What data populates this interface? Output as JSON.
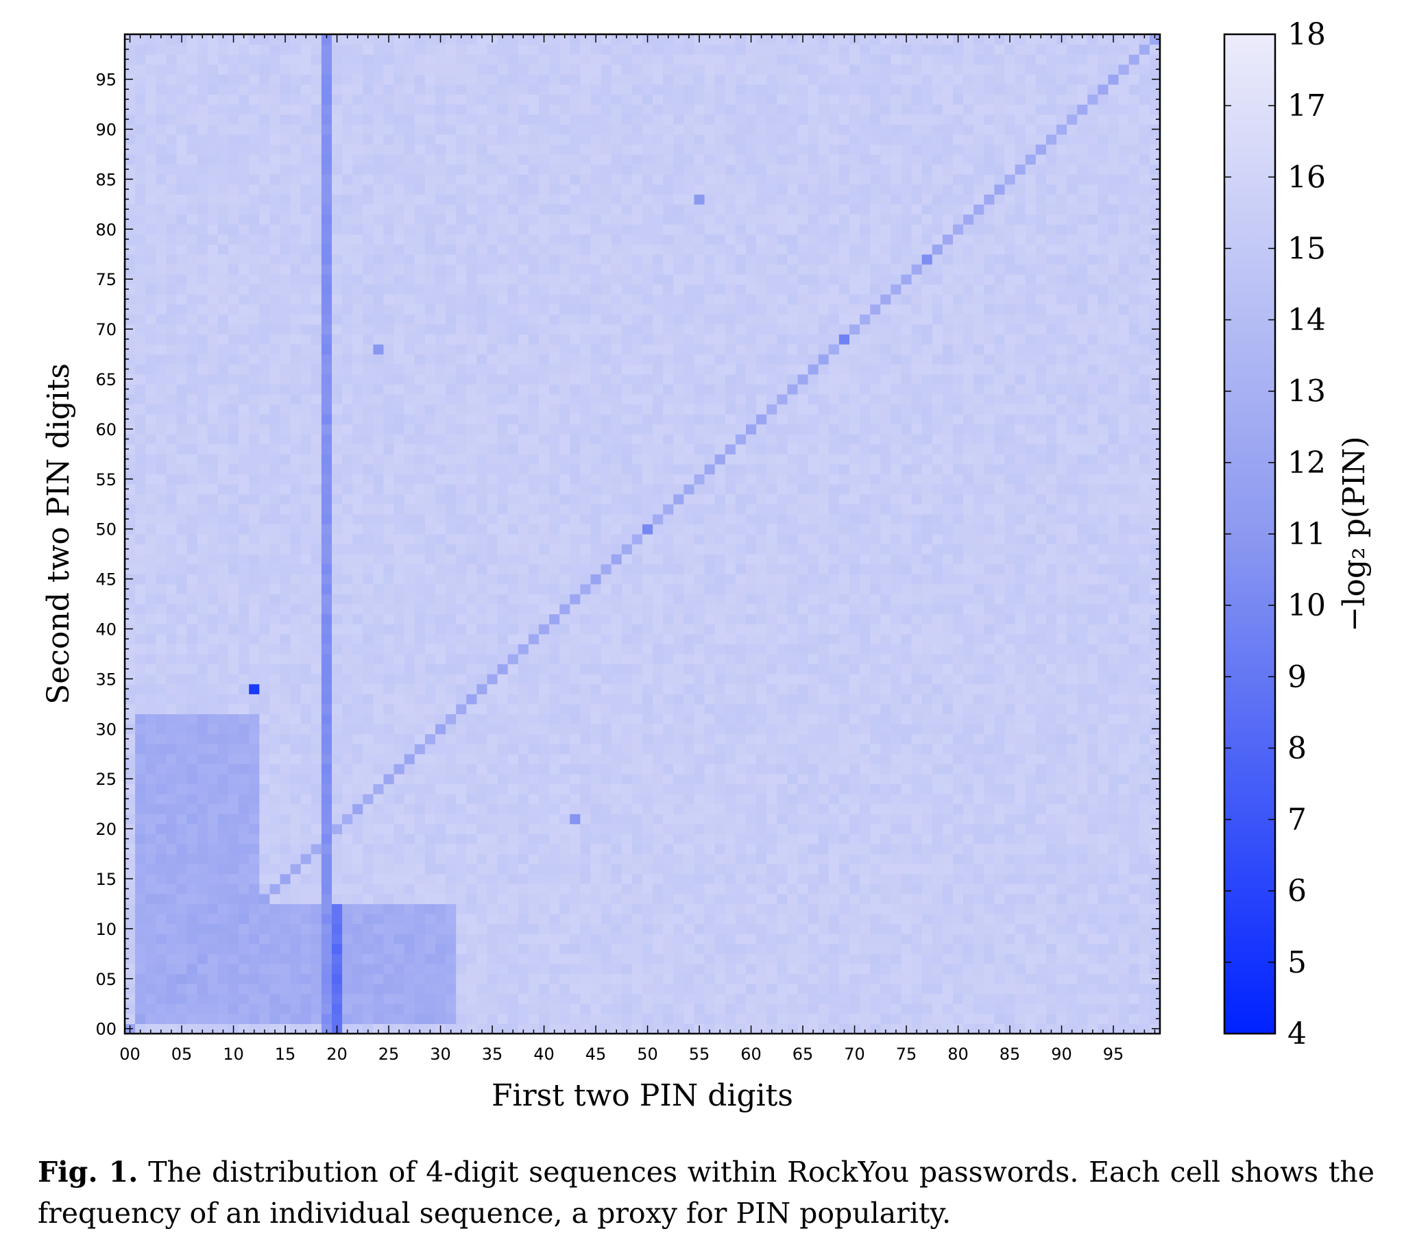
{
  "chart_data": {
    "type": "heatmap",
    "xlabel": "First two PIN digits",
    "ylabel": "Second two PIN digits",
    "x_ticks": [
      "00",
      "05",
      "10",
      "15",
      "20",
      "25",
      "30",
      "35",
      "40",
      "45",
      "50",
      "55",
      "60",
      "65",
      "70",
      "75",
      "80",
      "85",
      "90",
      "95"
    ],
    "y_ticks": [
      "00",
      "05",
      "10",
      "15",
      "20",
      "25",
      "30",
      "35",
      "40",
      "45",
      "50",
      "55",
      "60",
      "65",
      "70",
      "75",
      "80",
      "85",
      "90",
      "95"
    ],
    "x_range": [
      0,
      99
    ],
    "y_range": [
      0,
      99
    ],
    "colorbar": {
      "label": "−log₂ p(PIN)",
      "range": [
        4,
        18
      ],
      "ticks": [
        "4",
        "5",
        "6",
        "7",
        "8",
        "9",
        "10",
        "11",
        "12",
        "13",
        "14",
        "15",
        "16",
        "17",
        "18"
      ],
      "color_low": "#0022ff",
      "color_high": "#ececfb"
    },
    "value_model": {
      "baseline": 15.4,
      "years_1900s": {
        "first_digits": 19,
        "value": 10.5
      },
      "years_2000s": {
        "first_digits": 20,
        "second_range": [
          0,
          12
        ],
        "value": 8.5
      },
      "repeated_pairs_diagonal": 12.3,
      "dates_mmdd_region": {
        "first_range": [
          1,
          12
        ],
        "second_range": [
          1,
          31
        ],
        "value": 12.6
      },
      "dates_ddmm_region": {
        "first_range": [
          1,
          31
        ],
        "second_range": [
          1,
          12
        ],
        "value": 12.6
      },
      "hotspots": [
        {
          "first": 12,
          "second": 34,
          "value": 5.0
        },
        {
          "first": 69,
          "second": 69,
          "value": 9.5
        },
        {
          "first": 24,
          "second": 68,
          "value": 10.5
        },
        {
          "first": 43,
          "second": 21,
          "value": 10.5
        },
        {
          "first": 50,
          "second": 50,
          "value": 10.0
        },
        {
          "first": 55,
          "second": 83,
          "value": 11.0
        },
        {
          "first": 77,
          "second": 77,
          "value": 10.0
        }
      ]
    }
  },
  "caption": {
    "label": "Fig. 1.",
    "text": "The distribution of 4-digit sequences within RockYou passwords. Each cell shows the frequency of an individual sequence, a proxy for PIN popularity."
  }
}
